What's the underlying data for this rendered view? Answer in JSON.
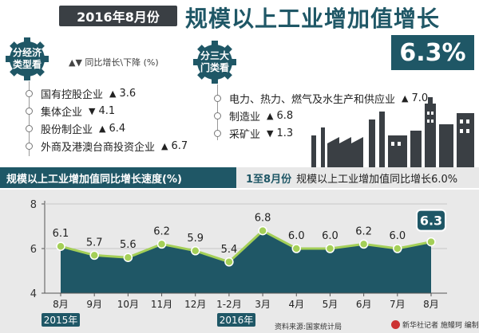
{
  "header": {
    "date_label": "2016年8月份",
    "title": "规模以上工业增加值增长",
    "headline_rate": "6.3%"
  },
  "by_economic_type": {
    "badge": "分经济类型看",
    "legend": "▲▼ 同比增长\\下降 (%)",
    "items": [
      {
        "label": "国有控股企业",
        "direction": "▲",
        "value": "3.6"
      },
      {
        "label": "集体企业",
        "direction": "▼",
        "value": "4.1"
      },
      {
        "label": "股份制企业",
        "direction": "▲",
        "value": "6.4"
      },
      {
        "label": "外商及港澳台商投资企业",
        "direction": "▲",
        "value": "6.7"
      }
    ]
  },
  "by_sector": {
    "badge": "分三大门类看",
    "items": [
      {
        "label": "电力、热力、燃气及水生产和供应业",
        "direction": "▲",
        "value": "7.0"
      },
      {
        "label": "制造业",
        "direction": "▲",
        "value": "6.8"
      },
      {
        "label": "采矿业",
        "direction": "▼",
        "value": "1.3"
      }
    ]
  },
  "section": {
    "left_title": "规模以上工业增加值同比增长速度(%)",
    "right_bold": "1至8月份",
    "right_text": "规模以上工业增加值同比增长6.0%"
  },
  "chart_data": {
    "type": "area",
    "categories": [
      "8月",
      "9月",
      "10月",
      "11月",
      "12月",
      "1-2月",
      "3月",
      "4月",
      "5月",
      "6月",
      "7月",
      "8月"
    ],
    "values": [
      6.1,
      5.7,
      5.6,
      6.2,
      5.9,
      5.4,
      6.8,
      6.0,
      6.0,
      6.2,
      6.0,
      6.3
    ],
    "value_labels": [
      "6.1",
      "5.7",
      "5.6",
      "6.2",
      "5.9",
      "5.4",
      "6.8",
      "6.0",
      "6.0",
      "6.2",
      "6.0",
      "6.3"
    ],
    "year_labels": [
      "2015年",
      "2016年"
    ],
    "ylim": [
      4,
      8
    ],
    "yticks": [
      "4",
      "6",
      "8"
    ],
    "grid": true,
    "colors": {
      "fill": "#1f5766",
      "line": "#a4cf58",
      "highlight": "#1f5766"
    }
  },
  "footer": {
    "source": "资料来源:国家统计局",
    "credit": "新华社记者 施鳗珂 编制"
  }
}
